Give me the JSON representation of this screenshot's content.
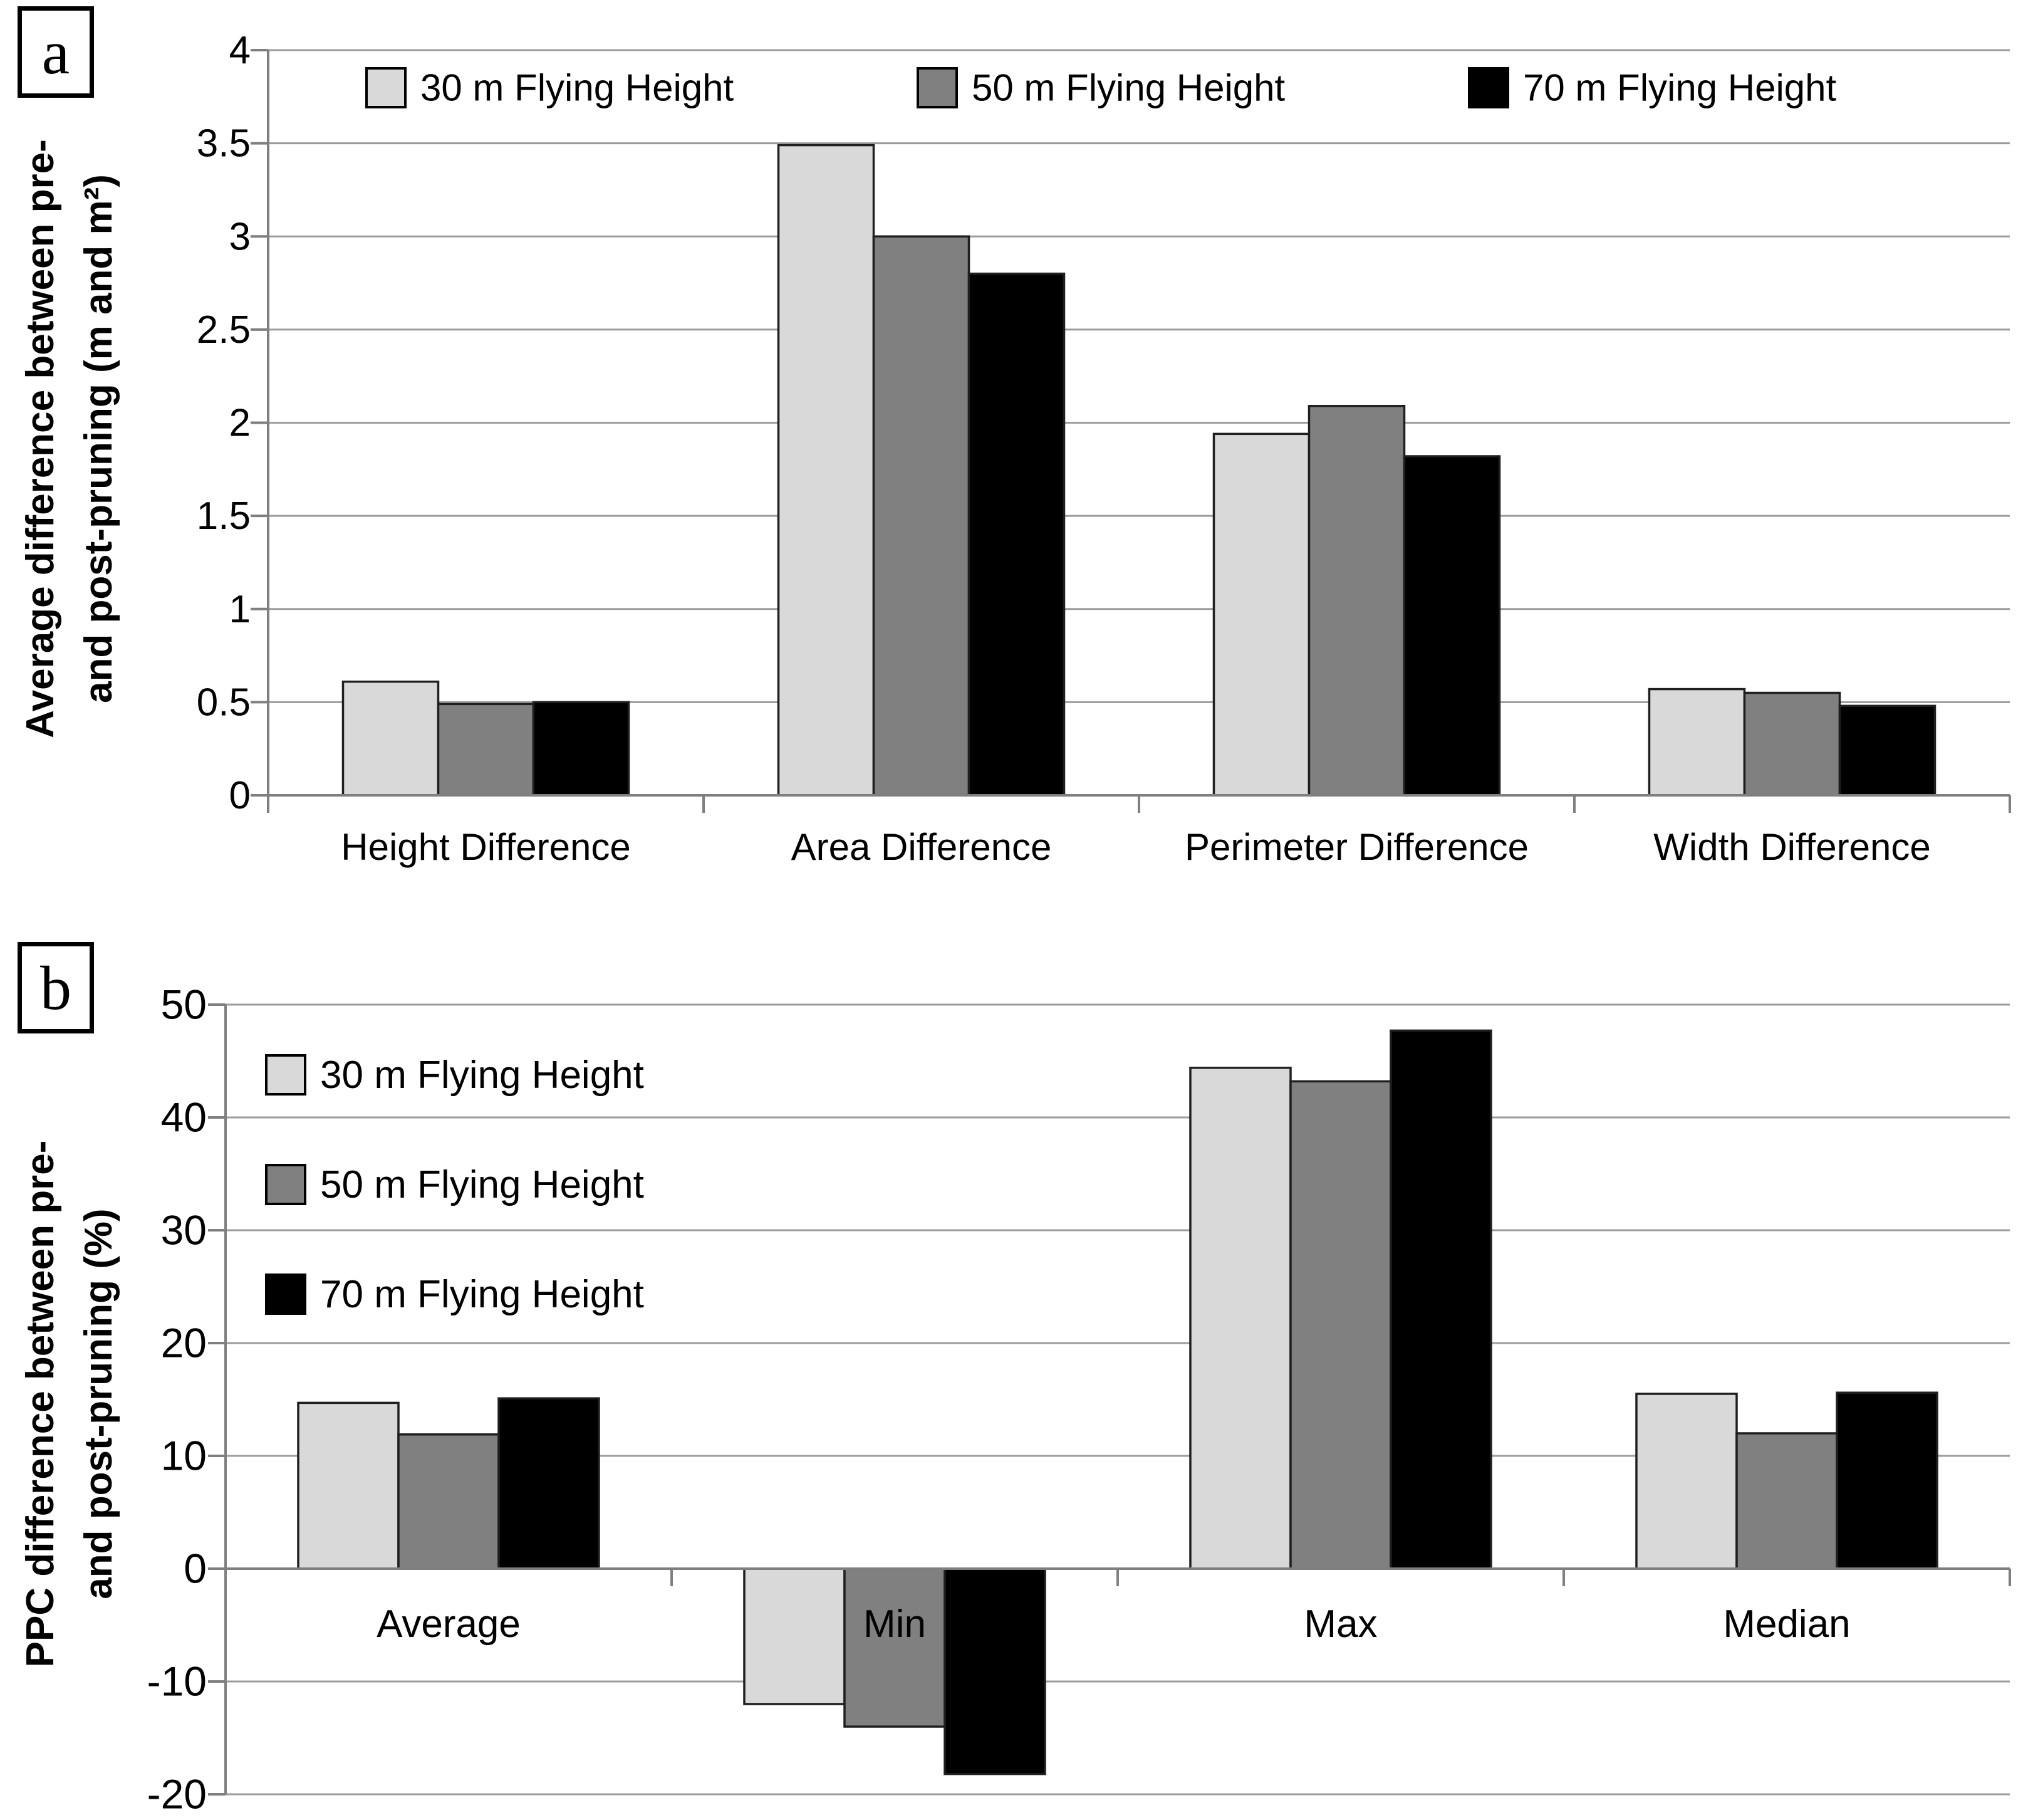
{
  "panels": [
    {
      "label": "a"
    },
    {
      "label": "b"
    }
  ],
  "colors": {
    "series_30m": "#d9d9d9",
    "series_50m": "#808080",
    "series_70m": "#000000",
    "bar_border": "#1f1f1f",
    "gridline": "#9c9c9c",
    "axis": "#7f7f7f",
    "text": "#000000",
    "background": "#ffffff"
  },
  "chart_data": [
    {
      "type": "bar",
      "panel": "a",
      "title": "",
      "ylabel_lines": [
        "Average difference between pre-",
        "and post-pruning (m and m²)"
      ],
      "xlabel": "",
      "categories": [
        "Height Difference",
        "Area Difference",
        "Perimeter Difference",
        "Width Difference"
      ],
      "series": [
        {
          "name": "30 m Flying Height",
          "color": "#d9d9d9",
          "values": [
            0.61,
            3.49,
            1.94,
            0.57
          ]
        },
        {
          "name": "50 m Flying Height",
          "color": "#808080",
          "values": [
            0.49,
            3.0,
            2.09,
            0.55
          ]
        },
        {
          "name": "70 m Flying Height",
          "color": "#000000",
          "values": [
            0.5,
            2.8,
            1.82,
            0.48
          ]
        }
      ],
      "ylim": [
        0,
        4
      ],
      "ytick_step": 0.5,
      "ytick_labels": [
        "0",
        "0.5",
        "1",
        "1.5",
        "2",
        "2.5",
        "3",
        "3.5",
        "4"
      ],
      "grid": true,
      "legend_position": "top-horizontal"
    },
    {
      "type": "bar",
      "panel": "b",
      "title": "",
      "ylabel_lines": [
        "PPC difference between pre-",
        "and post-pruning (%)"
      ],
      "xlabel": "",
      "categories": [
        "Average",
        "Min",
        "Max",
        "Median"
      ],
      "series": [
        {
          "name": "30 m Flying Height",
          "color": "#d9d9d9",
          "values": [
            14.7,
            -12.0,
            44.4,
            15.5
          ]
        },
        {
          "name": "50 m Flying Height",
          "color": "#808080",
          "values": [
            11.9,
            -14.0,
            43.2,
            12.0
          ]
        },
        {
          "name": "70 m Flying Height",
          "color": "#000000",
          "values": [
            15.1,
            -18.2,
            47.7,
            15.6
          ]
        }
      ],
      "ylim": [
        -20,
        50
      ],
      "ytick_step": 10,
      "ytick_labels": [
        "-20",
        "-10",
        "0",
        "10",
        "20",
        "30",
        "40",
        "50"
      ],
      "grid": true,
      "legend_position": "left-vertical"
    }
  ]
}
